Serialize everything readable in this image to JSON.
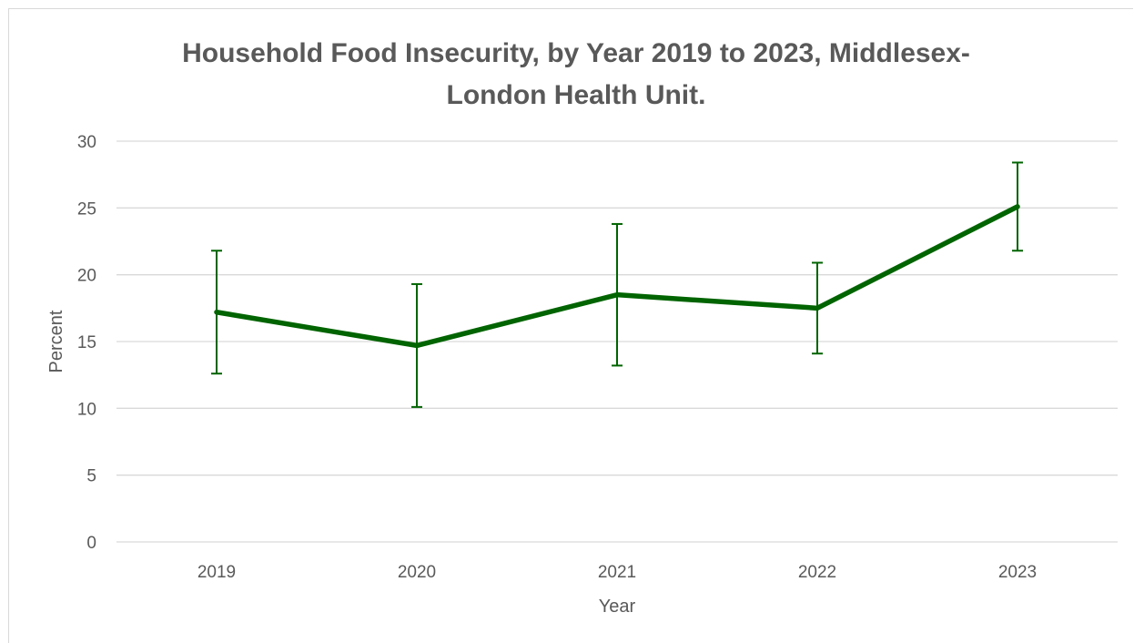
{
  "chart_data": {
    "type": "line",
    "title_lines": [
      "Household Food Insecurity, by Year 2019 to 2023, Middlesex-",
      "London Health Unit."
    ],
    "xlabel": "Year",
    "ylabel": "Percent",
    "categories": [
      "2019",
      "2020",
      "2021",
      "2022",
      "2023"
    ],
    "series": [
      {
        "values": [
          17.2,
          14.7,
          18.5,
          17.5,
          25.1
        ],
        "error_low": [
          12.6,
          10.1,
          13.2,
          14.1,
          21.8
        ],
        "error_high": [
          21.8,
          19.3,
          23.8,
          20.9,
          28.4
        ]
      }
    ],
    "ylim": [
      0,
      30
    ],
    "yticks": [
      0,
      5,
      10,
      15,
      20,
      25,
      30
    ],
    "grid": true,
    "legend": "none",
    "colors": {
      "line": "#006400",
      "grid": "#d9d9d9",
      "text": "#595959"
    }
  }
}
